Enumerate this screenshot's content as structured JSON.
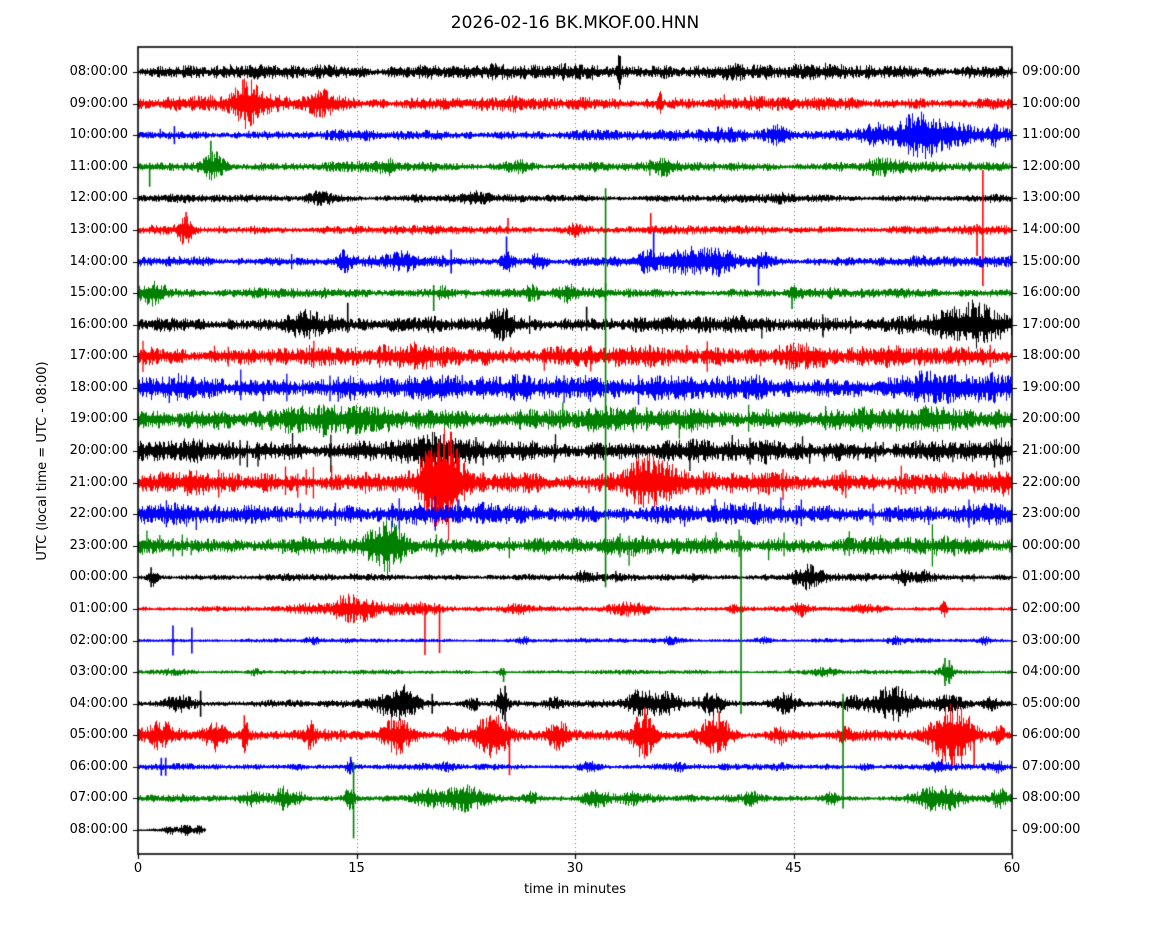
{
  "chart_data": {
    "type": "seismogram-dayplot",
    "title": "2026-02-16 BK.MKOF.00.HNN",
    "xlabel": "time in minutes",
    "ylabel": "UTC (local time = UTC - 08:00)",
    "xlim": [
      0,
      60
    ],
    "x_ticks": [
      0,
      15,
      30,
      45,
      60
    ],
    "grid_minutes": [
      15,
      30,
      45
    ],
    "minutes_per_row": 60,
    "rows_count": 25,
    "trace_colors": {
      "black": "#000000",
      "red": "#ff0000",
      "blue": "#0000ff",
      "green": "#008000"
    },
    "rows": [
      {
        "left": "08:00:00",
        "right": "09:00:00",
        "color": "black",
        "base": 8,
        "spike_density": 8,
        "spike_max": 15,
        "trend": [
          1,
          1.05
        ],
        "bursts": [
          [
            33,
            0.15,
            15
          ],
          [
            21,
            2,
            2
          ],
          [
            40,
            3,
            2
          ]
        ],
        "spikes": [
          [
            33.1,
            16,
            10
          ]
        ]
      },
      {
        "left": "09:00:00",
        "right": "10:00:00",
        "color": "red",
        "base": 8,
        "spike_density": 8,
        "spike_max": 13,
        "trend": [
          1.1,
          0.85
        ],
        "bursts": [
          [
            7.5,
            1.0,
            18
          ],
          [
            12.6,
            1.0,
            10
          ],
          [
            35.8,
            0.15,
            12
          ]
        ],
        "spikes": [
          [
            7.2,
            24,
            6
          ]
        ]
      },
      {
        "left": "10:00:00",
        "right": "11:00:00",
        "color": "blue",
        "base": 5.5,
        "spike_density": 6,
        "spike_max": 10,
        "trend": [
          0.95,
          1.25
        ],
        "bursts": [
          [
            40,
            1.5,
            5
          ],
          [
            44,
            1,
            7
          ],
          [
            50.5,
            1,
            8
          ],
          [
            53.8,
            1.6,
            19
          ],
          [
            56.5,
            1,
            8
          ],
          [
            58.8,
            0.6,
            7
          ]
        ],
        "spikes": [
          [
            2.5,
            9,
            9
          ]
        ]
      },
      {
        "left": "11:00:00",
        "right": "12:00:00",
        "color": "green",
        "base": 5.5,
        "spike_density": 10,
        "spike_max": 11,
        "bursts": [
          [
            5.2,
            0.8,
            13
          ],
          [
            17,
            0.7,
            5
          ],
          [
            26,
            0.7,
            5
          ],
          [
            36,
            0.8,
            5
          ],
          [
            51,
            1,
            7
          ]
        ],
        "spikes": [
          [
            5.0,
            26,
            6
          ],
          [
            0.8,
            4,
            20
          ]
        ]
      },
      {
        "left": "12:00:00",
        "right": "13:00:00",
        "color": "black",
        "base": 4.5,
        "spike_density": 5,
        "spike_max": 8,
        "bursts": [
          [
            12.5,
            1.2,
            5
          ],
          [
            23,
            0.8,
            4
          ],
          [
            44,
            0.8,
            3
          ]
        ],
        "spikes": []
      },
      {
        "left": "13:00:00",
        "right": "14:00:00",
        "color": "red",
        "base": 5,
        "spike_density": 10,
        "spike_max": 9,
        "bursts": [
          [
            3.2,
            0.5,
            11
          ],
          [
            30,
            0.5,
            5
          ]
        ],
        "spikes": [
          [
            3.3,
            18,
            5
          ],
          [
            25.4,
            12,
            4
          ],
          [
            35.2,
            17,
            4
          ],
          [
            57.6,
            6,
            26
          ],
          [
            58.0,
            60,
            56
          ]
        ]
      },
      {
        "left": "14:00:00",
        "right": "15:00:00",
        "color": "blue",
        "base": 6,
        "spike_density": 14,
        "spike_max": 11,
        "bursts": [
          [
            14.2,
            0.4,
            7
          ],
          [
            18,
            1,
            7
          ],
          [
            25.3,
            0.4,
            9
          ],
          [
            27.5,
            0.5,
            7
          ],
          [
            35,
            0.6,
            8
          ],
          [
            38,
            2,
            10
          ],
          [
            40,
            1,
            8
          ],
          [
            43,
            0.5,
            6
          ]
        ],
        "spikes": [
          [
            21.5,
            12,
            12
          ],
          [
            25.3,
            25,
            8
          ],
          [
            35.4,
            30,
            8
          ],
          [
            42.6,
            6,
            24
          ]
        ]
      },
      {
        "left": "15:00:00",
        "right": "16:00:00",
        "color": "green",
        "base": 5.5,
        "spike_density": 14,
        "spike_max": 11,
        "bursts": [
          [
            0.9,
            1,
            11
          ],
          [
            21,
            0.5,
            6
          ],
          [
            27,
            0.5,
            6
          ],
          [
            29.5,
            0.5,
            6
          ],
          [
            45,
            0.5,
            5
          ]
        ],
        "spikes": [
          [
            20.3,
            8,
            18
          ],
          [
            32.1,
            10,
            8
          ],
          [
            44.9,
            6,
            16
          ]
        ]
      },
      {
        "left": "16:00:00",
        "right": "17:00:00",
        "color": "black",
        "base": 8,
        "spike_density": 30,
        "spike_max": 20,
        "trend": [
          0.85,
          1.35
        ],
        "bursts": [
          [
            11.5,
            1.5,
            12
          ],
          [
            25,
            1,
            10
          ],
          [
            57,
            2,
            13
          ]
        ],
        "spikes": [
          [
            14.4,
            22,
            8
          ],
          [
            30.8,
            18,
            6
          ]
        ]
      },
      {
        "left": "17:00:00",
        "right": "18:00:00",
        "color": "red",
        "base": 11,
        "spike_density": 45,
        "spike_max": 26,
        "bursts": [
          [
            20,
            2,
            6
          ],
          [
            45,
            2,
            6
          ]
        ],
        "spikes": []
      },
      {
        "left": "18:00:00",
        "right": "19:00:00",
        "color": "blue",
        "base": 13,
        "spike_density": 50,
        "spike_max": 28,
        "bursts": [
          [
            28,
            3,
            5
          ],
          [
            55,
            3,
            5
          ]
        ],
        "spikes": []
      },
      {
        "left": "19:00:00",
        "right": "20:00:00",
        "color": "green",
        "base": 13,
        "spike_density": 50,
        "spike_max": 28,
        "bursts": [
          [
            13,
            2,
            5
          ]
        ],
        "spikes": []
      },
      {
        "left": "20:00:00",
        "right": "21:00:00",
        "color": "black",
        "base": 12,
        "spike_density": 50,
        "spike_max": 28,
        "bursts": [
          [
            20,
            2,
            6
          ]
        ],
        "spikes": []
      },
      {
        "left": "21:00:00",
        "right": "22:00:00",
        "color": "red",
        "base": 12,
        "spike_density": 55,
        "spike_max": 30,
        "bursts": [
          [
            20.5,
            1.2,
            34
          ],
          [
            21.4,
            0.8,
            26
          ],
          [
            35,
            1.5,
            22
          ]
        ],
        "spikes": [
          [
            20.6,
            40,
            40
          ]
        ]
      },
      {
        "left": "22:00:00",
        "right": "23:00:00",
        "color": "blue",
        "base": 11,
        "spike_density": 50,
        "spike_max": 28,
        "bursts": [],
        "spikes": []
      },
      {
        "left": "23:00:00",
        "right": "00:00:00",
        "color": "green",
        "base": 10,
        "spike_density": 45,
        "spike_max": 26,
        "bursts": [
          [
            17,
            1,
            20
          ]
        ],
        "spikes": []
      },
      {
        "left": "00:00:00",
        "right": "01:00:00",
        "color": "black",
        "base": 4,
        "spike_density": 10,
        "spike_max": 9,
        "bursts": [
          [
            1,
            0.3,
            7
          ],
          [
            30.5,
            0.4,
            5
          ],
          [
            46,
            1,
            12
          ],
          [
            52.5,
            0.5,
            6
          ],
          [
            53.8,
            0.5,
            6
          ]
        ],
        "spikes": [
          [
            0.9,
            10,
            10
          ],
          [
            46.2,
            13,
            6
          ]
        ]
      },
      {
        "left": "01:00:00",
        "right": "02:00:00",
        "color": "red",
        "base": 3,
        "spike_density": 8,
        "spike_max": 7,
        "bursts": [
          [
            12,
            1.5,
            4
          ],
          [
            14.3,
            1.0,
            13
          ],
          [
            15.6,
            0.8,
            7
          ],
          [
            17.5,
            2,
            5
          ],
          [
            19.8,
            1,
            5
          ],
          [
            26,
            1,
            4
          ],
          [
            33.8,
            1.5,
            6
          ],
          [
            41,
            0.5,
            4
          ],
          [
            45.5,
            0.5,
            6
          ],
          [
            50,
            1,
            3
          ],
          [
            55.3,
            0.2,
            8
          ]
        ],
        "spikes": [
          [
            19.7,
            6,
            46
          ],
          [
            20.7,
            5,
            44
          ]
        ]
      },
      {
        "left": "02:00:00",
        "right": "03:00:00",
        "color": "blue",
        "base": 2.5,
        "spike_density": 5,
        "spike_max": 5,
        "bursts": [
          [
            12,
            0.5,
            3
          ],
          [
            26.5,
            0.5,
            3
          ],
          [
            36.5,
            0.5,
            3
          ],
          [
            43,
            0.5,
            3
          ],
          [
            52,
            0.5,
            3
          ],
          [
            58,
            0.4,
            4
          ]
        ],
        "spikes": [
          [
            2.4,
            15,
            15
          ],
          [
            3.7,
            13,
            13
          ]
        ]
      },
      {
        "left": "03:00:00",
        "right": "04:00:00",
        "color": "green",
        "base": 2.5,
        "spike_density": 6,
        "spike_max": 5,
        "bursts": [
          [
            2.5,
            1,
            3
          ],
          [
            8,
            0.5,
            3
          ],
          [
            25,
            0.3,
            3
          ],
          [
            47,
            1,
            4
          ],
          [
            55.5,
            0.4,
            10
          ]
        ],
        "spikes": [
          [
            25.1,
            4,
            10
          ],
          [
            55.4,
            14,
            14
          ],
          [
            55.7,
            12,
            12
          ]
        ]
      },
      {
        "left": "04:00:00",
        "right": "05:00:00",
        "color": "black",
        "base": 4,
        "spike_density": 16,
        "spike_max": 13,
        "bursts": [
          [
            2.8,
            1,
            8
          ],
          [
            17.5,
            1.2,
            14
          ],
          [
            18.6,
            0.6,
            10
          ],
          [
            23,
            0.5,
            6
          ],
          [
            25,
            0.4,
            15
          ],
          [
            28.5,
            0.5,
            6
          ],
          [
            34.5,
            1,
            12
          ],
          [
            36.2,
            1,
            10
          ],
          [
            39.5,
            0.8,
            12
          ],
          [
            44.5,
            0.8,
            10
          ],
          [
            49,
            0.5,
            6
          ],
          [
            51.8,
            1.5,
            16
          ],
          [
            55.8,
            1,
            8
          ],
          [
            58.5,
            0.5,
            6
          ]
        ],
        "spikes": [
          [
            4.3,
            13,
            13
          ],
          [
            20.2,
            10,
            10
          ],
          [
            25.2,
            18,
            18
          ]
        ]
      },
      {
        "left": "05:00:00",
        "right": "06:00:00",
        "color": "red",
        "base": 6,
        "spike_density": 22,
        "spike_max": 16,
        "bursts": [
          [
            1.7,
            1.3,
            11
          ],
          [
            5.2,
            0.8,
            13
          ],
          [
            7.3,
            0.3,
            15
          ],
          [
            11.8,
            0.3,
            11
          ],
          [
            17.8,
            1,
            15
          ],
          [
            21.5,
            0.5,
            8
          ],
          [
            24.3,
            1.3,
            19
          ],
          [
            28.8,
            0.8,
            10
          ],
          [
            34.7,
            0.7,
            21
          ],
          [
            39.6,
            1,
            19
          ],
          [
            44,
            0.5,
            8
          ],
          [
            48.5,
            0.5,
            6
          ],
          [
            55.4,
            1.2,
            21
          ],
          [
            56.6,
            1,
            17
          ],
          [
            59,
            0.5,
            9
          ]
        ],
        "spikes": [
          [
            7.3,
            20,
            8
          ],
          [
            25.5,
            8,
            40
          ],
          [
            34.8,
            28,
            8
          ],
          [
            39.9,
            24,
            8
          ],
          [
            57.4,
            10,
            30
          ]
        ]
      },
      {
        "left": "06:00:00",
        "right": "07:00:00",
        "color": "blue",
        "base": 3.5,
        "spike_density": 8,
        "spike_max": 7,
        "bursts": [
          [
            11,
            0.5,
            3
          ],
          [
            14.5,
            0.3,
            5
          ],
          [
            21,
            0.5,
            3
          ],
          [
            31,
            0.8,
            4
          ],
          [
            37,
            0.5,
            3
          ],
          [
            44,
            0.5,
            3
          ],
          [
            50,
            0.5,
            3
          ],
          [
            55,
            0.8,
            6
          ],
          [
            59,
            0.3,
            4
          ]
        ],
        "spikes": [
          [
            1.6,
            9,
            9
          ],
          [
            1.9,
            9,
            9
          ],
          [
            14.6,
            10,
            4
          ]
        ]
      },
      {
        "left": "07:00:00",
        "right": "08:00:00",
        "color": "green",
        "base": 4,
        "spike_density": 14,
        "spike_max": 9,
        "bursts": [
          [
            8,
            1,
            6
          ],
          [
            9.9,
            0.5,
            10
          ],
          [
            11,
            0.5,
            6
          ],
          [
            14.5,
            0.3,
            11
          ],
          [
            20,
            1,
            6
          ],
          [
            22.4,
            1.4,
            12
          ],
          [
            27,
            0.5,
            6
          ],
          [
            31.5,
            1,
            8
          ],
          [
            34,
            1,
            6
          ],
          [
            42,
            0.5,
            6
          ],
          [
            47.6,
            0.5,
            5
          ],
          [
            55,
            1.4,
            13
          ],
          [
            59.2,
            0.5,
            8
          ]
        ],
        "spikes": [
          [
            14.8,
            36,
            40
          ]
        ]
      },
      {
        "left": "08:00:00",
        "right": "09:00:00",
        "color": "black",
        "base": 2.2,
        "end": 4.6,
        "spike_density": 2,
        "spike_max": 3,
        "bursts": [
          [
            2.2,
            0.4,
            4
          ],
          [
            3.2,
            0.4,
            5
          ],
          [
            4.2,
            0.3,
            4
          ]
        ],
        "spikes": []
      }
    ],
    "global_spikes": [
      {
        "minute": 32.1,
        "color": "green",
        "from_row": 4,
        "to_row": 16
      },
      {
        "minute": 41.4,
        "color": "green",
        "from_row": 15,
        "to_row": 20
      },
      {
        "minute": 48.4,
        "color": "green",
        "from_row": 20,
        "to_row": 23
      }
    ]
  }
}
